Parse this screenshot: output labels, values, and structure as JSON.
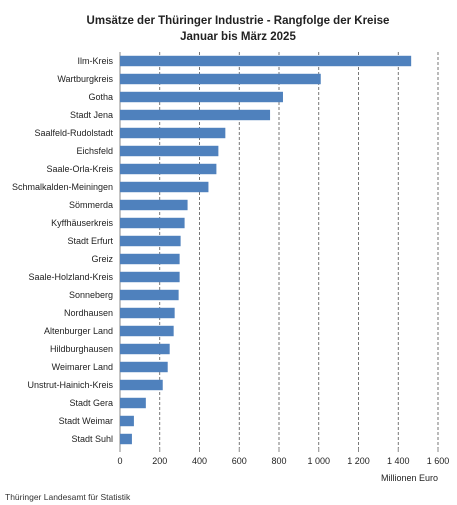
{
  "source": "Thüringer Landesamt für Statistik",
  "colors": {
    "bar": "#4f81bd",
    "grid": "#555555",
    "axis": "#888888"
  },
  "chart_data": {
    "type": "bar",
    "orientation": "horizontal",
    "title": "Umsätze der Thüringer Industrie - Rangfolge der Kreise",
    "subtitle": "Januar bis März 2025",
    "xlabel": "Millionen Euro",
    "ylabel": "",
    "xlim": [
      0,
      1600
    ],
    "xticks": [
      0,
      200,
      400,
      600,
      800,
      1000,
      1200,
      1400,
      1600
    ],
    "xtick_labels": [
      "0",
      "200",
      "400",
      "600",
      "800",
      "1 000",
      "1 200",
      "1 400",
      "1 600"
    ],
    "grid": "vertical dashed",
    "categories": [
      "Ilm-Kreis",
      "Wartburgkreis",
      "Gotha",
      "Stadt Jena",
      "Saalfeld-Rudolstadt",
      "Eichsfeld",
      "Saale-Orla-Kreis",
      "Schmalkalden-Meiningen",
      "Sömmerda",
      "Kyffhäuserkreis",
      "Stadt Erfurt",
      "Greiz",
      "Saale-Holzland-Kreis",
      "Sonneberg",
      "Nordhausen",
      "Altenburger Land",
      "Hildburghausen",
      "Weimarer Land",
      "Unstrut-Hainich-Kreis",
      "Stadt Gera",
      "Stadt Weimar",
      "Stadt Suhl"
    ],
    "values": [
      1465,
      1010,
      820,
      755,
      530,
      495,
      485,
      445,
      340,
      325,
      305,
      300,
      300,
      295,
      275,
      270,
      250,
      240,
      215,
      130,
      70,
      60
    ]
  }
}
